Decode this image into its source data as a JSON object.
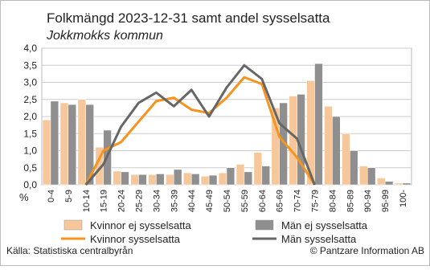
{
  "chart_data": {
    "type": "combo",
    "title": "Folkmängd 2023-12-31 samt andel sysselsatta",
    "subtitle": "Jokkmokks kommun",
    "y_label": "%",
    "categories": [
      "0-4",
      "5-9",
      "10-14",
      "15-19",
      "20-24",
      "25-29",
      "30-34",
      "35-39",
      "40-44",
      "45-49",
      "50-54",
      "55-59",
      "60-64",
      "65-69",
      "70-74",
      "75-79",
      "80-84",
      "85-89",
      "90-94",
      "95-99",
      "100-"
    ],
    "series": [
      {
        "name": "Kvinnor ej sysselsatta",
        "type": "bar",
        "color": "#f6c79a",
        "values": [
          1.9,
          2.4,
          2.5,
          1.1,
          0.4,
          0.3,
          0.3,
          0.3,
          0.35,
          0.25,
          0.35,
          0.6,
          0.95,
          2.25,
          2.6,
          3.05,
          2.3,
          1.5,
          0.55,
          0.2,
          0.05
        ]
      },
      {
        "name": "Män ej sysselsatta",
        "type": "bar",
        "color": "#8f8f8f",
        "values": [
          2.45,
          2.35,
          2.35,
          1.6,
          0.38,
          0.3,
          0.32,
          0.45,
          0.32,
          0.28,
          0.5,
          0.38,
          0.55,
          2.4,
          2.65,
          3.55,
          2.0,
          1.0,
          0.5,
          0.1,
          0.05
        ]
      },
      {
        "name": "Kvinnor sysselsatta",
        "type": "line",
        "color": "#f7931e",
        "values": [
          null,
          null,
          0,
          1.0,
          1.25,
          1.85,
          2.45,
          2.55,
          2.2,
          2.1,
          2.55,
          3.15,
          2.95,
          1.4,
          0.8,
          0,
          null,
          null,
          null,
          null,
          null
        ]
      },
      {
        "name": "Män sysselsatta",
        "type": "line",
        "color": "#666666",
        "values": [
          null,
          null,
          0,
          0.6,
          1.7,
          2.4,
          2.7,
          2.3,
          2.78,
          2.0,
          2.85,
          3.5,
          3.1,
          1.8,
          1.35,
          0,
          null,
          null,
          null,
          null,
          null
        ]
      }
    ],
    "ylim": [
      0,
      4
    ],
    "yticks": [
      {
        "value": 0,
        "label": "0,0"
      },
      {
        "value": 0.5,
        "label": "0,5"
      },
      {
        "value": 1,
        "label": "1,0"
      },
      {
        "value": 1.5,
        "label": "1,5"
      },
      {
        "value": 2,
        "label": "2,0"
      },
      {
        "value": 2.5,
        "label": "2,5"
      },
      {
        "value": 3,
        "label": "3,0"
      },
      {
        "value": 3.5,
        "label": "3,5"
      },
      {
        "value": 4,
        "label": "4,0"
      }
    ],
    "grid": true,
    "source": "Källa: Statistiska centralbyrån",
    "credit": "© Pantzare Information AB"
  }
}
